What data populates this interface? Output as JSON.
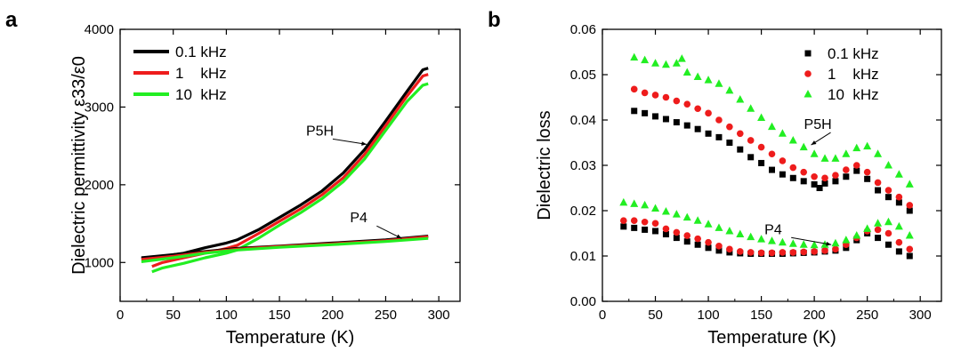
{
  "colors": {
    "black": "#000000",
    "red": "#ee1c1c",
    "green": "#22ee22"
  },
  "chart_data": [
    {
      "panel": "a",
      "type": "line",
      "xlabel": "Temperature (K)",
      "ylabel": "Dielectric permittivity ε33/ε0",
      "xlim": [
        0,
        320
      ],
      "ylim": [
        500,
        4000
      ],
      "xticks": [
        0,
        50,
        100,
        150,
        200,
        250,
        300
      ],
      "yticks": [
        1000,
        2000,
        3000,
        4000
      ],
      "legend": {
        "placement": "top-left",
        "labels": [
          "0.1 kHz",
          "1    kHz",
          "10  kHz"
        ]
      },
      "annotations": [
        {
          "text": "P5H",
          "points_to": [
            232,
            2520
          ]
        },
        {
          "text": "P4",
          "points_to": [
            265,
            1310
          ]
        }
      ],
      "series": [
        {
          "name": "0.1 kHz",
          "group": "P5H",
          "color": "#000000",
          "x": [
            20,
            40,
            60,
            80,
            100,
            110,
            130,
            150,
            170,
            190,
            210,
            230,
            250,
            270,
            285,
            290
          ],
          "y": [
            1050,
            1080,
            1120,
            1190,
            1250,
            1290,
            1420,
            1580,
            1740,
            1920,
            2150,
            2450,
            2820,
            3200,
            3480,
            3500
          ]
        },
        {
          "name": "1    kHz",
          "group": "P5H",
          "color": "#ee1c1c",
          "x": [
            30,
            40,
            60,
            80,
            100,
            110,
            130,
            150,
            170,
            190,
            210,
            230,
            250,
            270,
            285,
            290
          ],
          "y": [
            950,
            1000,
            1060,
            1120,
            1180,
            1220,
            1370,
            1530,
            1690,
            1870,
            2090,
            2390,
            2760,
            3140,
            3400,
            3420
          ]
        },
        {
          "name": "10  kHz",
          "group": "P5H",
          "color": "#22ee22",
          "x": [
            30,
            40,
            60,
            80,
            100,
            110,
            130,
            150,
            170,
            190,
            210,
            230,
            250,
            270,
            285,
            290
          ],
          "y": [
            880,
            930,
            990,
            1060,
            1120,
            1160,
            1310,
            1480,
            1640,
            1820,
            2040,
            2330,
            2700,
            3070,
            3280,
            3300
          ]
        },
        {
          "name": "0.1 kHz",
          "group": "P4",
          "color": "#000000",
          "x": [
            20,
            50,
            80,
            110,
            150,
            200,
            250,
            290
          ],
          "y": [
            1060,
            1100,
            1140,
            1180,
            1210,
            1250,
            1290,
            1340
          ]
        },
        {
          "name": "1    kHz",
          "group": "P4",
          "color": "#ee1c1c",
          "x": [
            20,
            50,
            80,
            110,
            150,
            200,
            250,
            290
          ],
          "y": [
            1040,
            1080,
            1130,
            1170,
            1205,
            1240,
            1280,
            1330
          ]
        },
        {
          "name": "10  kHz",
          "group": "P4",
          "color": "#22ee22",
          "x": [
            20,
            50,
            80,
            110,
            150,
            200,
            250,
            290
          ],
          "y": [
            1010,
            1060,
            1120,
            1160,
            1195,
            1230,
            1270,
            1310
          ]
        }
      ]
    },
    {
      "panel": "b",
      "type": "scatter",
      "xlabel": "Temperature (K)",
      "ylabel": "Dielectric loss",
      "xlim": [
        0,
        320
      ],
      "ylim": [
        0.0,
        0.06
      ],
      "xticks": [
        0,
        50,
        100,
        150,
        200,
        250,
        300
      ],
      "yticks": [
        "0.00",
        "0.01",
        "0.02",
        "0.03",
        "0.04",
        "0.05",
        "0.06"
      ],
      "legend": {
        "placement": "top-right",
        "labels": [
          "0.1 kHz",
          "1    kHz",
          "10  kHz"
        ],
        "markers": [
          "square",
          "circle",
          "triangle"
        ]
      },
      "annotations": [
        {
          "text": "P5H",
          "points_to": [
            197,
            0.0345
          ]
        },
        {
          "text": "P4",
          "points_to": [
            216,
            0.0125
          ]
        }
      ],
      "series": [
        {
          "name": "0.1 kHz",
          "group": "P5H",
          "marker": "square",
          "color": "#000000",
          "x": [
            30,
            40,
            50,
            60,
            70,
            80,
            90,
            100,
            110,
            120,
            130,
            140,
            150,
            160,
            170,
            180,
            190,
            200,
            205,
            210,
            220,
            230,
            240,
            250,
            260,
            270,
            280,
            290
          ],
          "y": [
            0.042,
            0.0415,
            0.0408,
            0.0402,
            0.0395,
            0.0388,
            0.038,
            0.037,
            0.0362,
            0.035,
            0.0335,
            0.0318,
            0.0305,
            0.029,
            0.028,
            0.0272,
            0.0265,
            0.0258,
            0.025,
            0.026,
            0.0265,
            0.0275,
            0.0288,
            0.027,
            0.0245,
            0.023,
            0.0218,
            0.02
          ]
        },
        {
          "name": "1    kHz",
          "group": "P5H",
          "marker": "circle",
          "color": "#ee1c1c",
          "x": [
            30,
            40,
            50,
            60,
            70,
            80,
            90,
            100,
            110,
            120,
            130,
            140,
            150,
            160,
            170,
            180,
            190,
            200,
            210,
            220,
            230,
            240,
            250,
            260,
            270,
            280,
            290
          ],
          "y": [
            0.0468,
            0.046,
            0.0455,
            0.045,
            0.0442,
            0.0435,
            0.0425,
            0.0415,
            0.04,
            0.0385,
            0.037,
            0.0355,
            0.034,
            0.0325,
            0.031,
            0.0295,
            0.0285,
            0.0275,
            0.0272,
            0.0278,
            0.029,
            0.03,
            0.0285,
            0.0262,
            0.0245,
            0.023,
            0.0212
          ]
        },
        {
          "name": "10  kHz",
          "group": "P5H",
          "marker": "triangle",
          "color": "#22ee22",
          "x": [
            30,
            40,
            50,
            60,
            70,
            75,
            80,
            90,
            100,
            110,
            120,
            130,
            140,
            150,
            160,
            170,
            180,
            190,
            200,
            210,
            220,
            230,
            240,
            250,
            260,
            270,
            280,
            290
          ],
          "y": [
            0.0538,
            0.0532,
            0.0525,
            0.0522,
            0.0525,
            0.0535,
            0.0505,
            0.0495,
            0.0488,
            0.048,
            0.0465,
            0.0445,
            0.0425,
            0.0405,
            0.0385,
            0.037,
            0.0355,
            0.034,
            0.0325,
            0.0315,
            0.0315,
            0.0325,
            0.0338,
            0.0342,
            0.0325,
            0.03,
            0.028,
            0.0258
          ]
        },
        {
          "name": "0.1 kHz",
          "group": "P4",
          "marker": "square",
          "color": "#000000",
          "x": [
            20,
            30,
            40,
            50,
            60,
            70,
            80,
            90,
            100,
            110,
            120,
            130,
            140,
            150,
            160,
            170,
            180,
            190,
            200,
            210,
            220,
            230,
            240,
            250,
            260,
            270,
            280,
            290
          ],
          "y": [
            0.0165,
            0.0162,
            0.0158,
            0.0155,
            0.0148,
            0.014,
            0.0132,
            0.0125,
            0.0118,
            0.0112,
            0.0108,
            0.0106,
            0.0105,
            0.0105,
            0.0105,
            0.0105,
            0.0106,
            0.0107,
            0.0108,
            0.011,
            0.0112,
            0.0118,
            0.0135,
            0.015,
            0.014,
            0.0125,
            0.011,
            0.01
          ]
        },
        {
          "name": "1    kHz",
          "group": "P4",
          "marker": "circle",
          "color": "#ee1c1c",
          "x": [
            20,
            30,
            40,
            50,
            60,
            70,
            80,
            90,
            100,
            110,
            120,
            130,
            140,
            150,
            160,
            170,
            180,
            190,
            200,
            210,
            220,
            230,
            240,
            250,
            260,
            270,
            280,
            290
          ],
          "y": [
            0.0178,
            0.0178,
            0.0175,
            0.0172,
            0.016,
            0.0152,
            0.0145,
            0.0138,
            0.013,
            0.0122,
            0.0115,
            0.011,
            0.0108,
            0.0107,
            0.0107,
            0.0108,
            0.0108,
            0.0109,
            0.011,
            0.0112,
            0.0115,
            0.0125,
            0.014,
            0.0155,
            0.0158,
            0.015,
            0.013,
            0.0115
          ]
        },
        {
          "name": "10  kHz",
          "group": "P4",
          "marker": "triangle",
          "color": "#22ee22",
          "x": [
            20,
            30,
            40,
            50,
            60,
            70,
            80,
            90,
            100,
            110,
            120,
            130,
            140,
            150,
            160,
            170,
            180,
            190,
            200,
            210,
            220,
            230,
            240,
            250,
            260,
            270,
            280,
            290
          ],
          "y": [
            0.0218,
            0.0215,
            0.0212,
            0.0205,
            0.0198,
            0.0192,
            0.0185,
            0.0178,
            0.017,
            0.0162,
            0.0155,
            0.0148,
            0.0142,
            0.0137,
            0.0133,
            0.013,
            0.0127,
            0.0125,
            0.0124,
            0.0125,
            0.0128,
            0.0135,
            0.0145,
            0.016,
            0.0172,
            0.0175,
            0.0165,
            0.0145
          ]
        }
      ]
    }
  ]
}
